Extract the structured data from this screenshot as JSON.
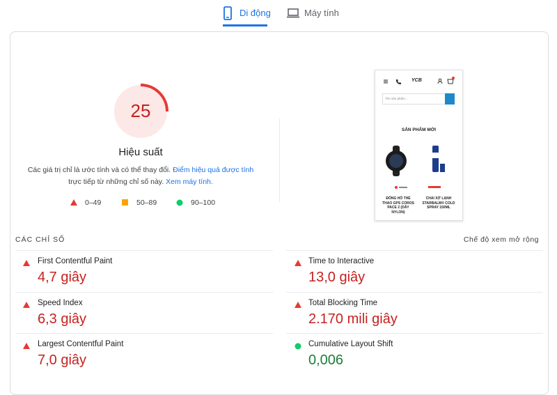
{
  "tabs": [
    {
      "label": "Di động",
      "active": true
    },
    {
      "label": "Máy tính",
      "active": false
    }
  ],
  "summary": {
    "score": 25,
    "title": "Hiệu suất",
    "description": {
      "text1": "Các giá trị chỉ là ước tính và có thể thay đổi.",
      "link1": "Điểm hiệu quả được tính",
      "text2": "trực tiếp từ những chỉ số này.",
      "link2": "Xem máy tính."
    },
    "legend": [
      {
        "label": "0–49",
        "color": "#e53935"
      },
      {
        "label": "50–89",
        "color": "#ffa400"
      },
      {
        "label": "90–100",
        "color": "#0cce6b"
      }
    ]
  },
  "screenshot": {
    "logo": "YCB",
    "search_placeholder": "Tìm sản phẩm...",
    "heading": "SẢN PHẨM MỚI",
    "products": [
      "ĐỒNG HỒ THỂ THAO GPS COROS PACE 2 (DÂY NYLON)",
      "CHAI XỊT LẠNH STARBALM® COLD SPRAY 150ML"
    ]
  },
  "metrics": {
    "heading": "CÁC CHỈ SỐ",
    "expand": "Chế độ xem mở rộng",
    "items": [
      {
        "label": "First Contentful Paint",
        "value": "4,7 giây",
        "color": "#c5221f",
        "icon": "triangle"
      },
      {
        "label": "Time to Interactive",
        "value": "13,0 giây",
        "color": "#c5221f",
        "icon": "triangle"
      },
      {
        "label": "Speed Index",
        "value": "6,3 giây",
        "color": "#c5221f",
        "icon": "triangle"
      },
      {
        "label": "Total Blocking Time",
        "value": "2.170 mili giây",
        "color": "#c5221f",
        "icon": "triangle"
      },
      {
        "label": "Largest Contentful Paint",
        "value": "7,0 giây",
        "color": "#c5221f",
        "icon": "triangle"
      },
      {
        "label": "Cumulative Layout Shift",
        "value": "0,006",
        "color": "#188038",
        "icon": "circle"
      }
    ]
  }
}
